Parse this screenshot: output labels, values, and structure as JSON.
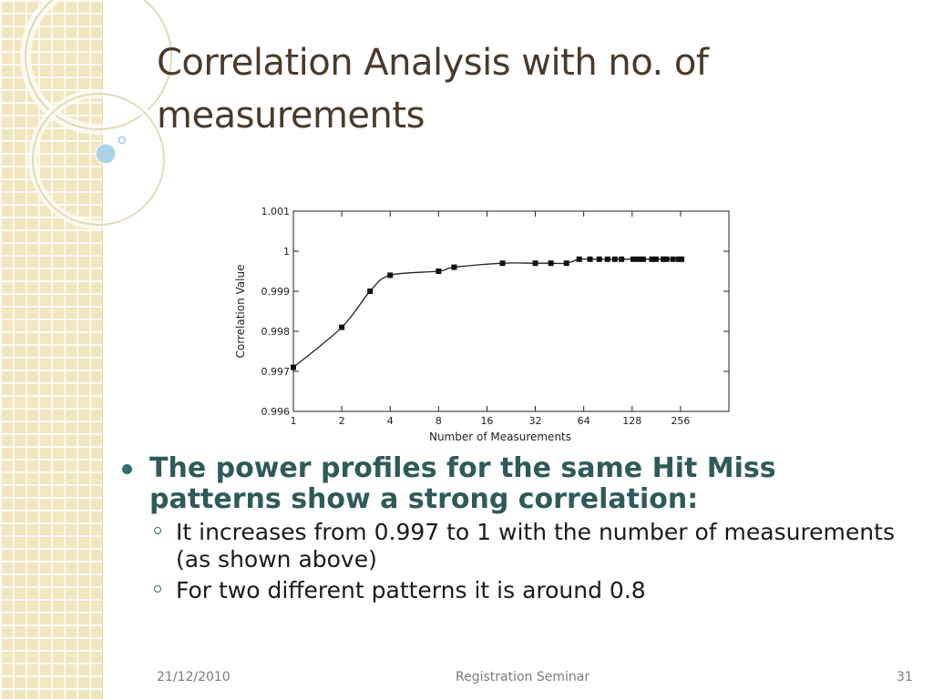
{
  "slide": {
    "title": "Correlation Analysis with no. of measurements",
    "bullet": "The power profiles for the same Hit Miss patterns show a strong correlation:",
    "subbullets": [
      "It increases from 0.997 to 1 with the number of measurements (as shown above)",
      "For two different patterns it is around 0.8"
    ],
    "footer": {
      "date": "21/12/2010",
      "center": "Registration Seminar",
      "page": "31"
    }
  },
  "chart_data": {
    "type": "line",
    "xlabel": "Number of Measurements",
    "ylabel": "Correlation Value",
    "xscale": "log2",
    "xlim": [
      1,
      512
    ],
    "ylim": [
      0.996,
      1.001
    ],
    "xticks": [
      "1",
      "2",
      "4",
      "8",
      "16",
      "32",
      "64",
      "128",
      "256"
    ],
    "xtick_values": [
      1,
      2,
      4,
      8,
      16,
      32,
      64,
      128,
      256
    ],
    "yticks": [
      "0.996",
      "0.997",
      "0.998",
      "0.999",
      "1",
      "1.001"
    ],
    "ytick_values": [
      0.996,
      0.997,
      0.998,
      0.999,
      1.0,
      1.001
    ],
    "grid": false,
    "series": [
      {
        "x": [
          1,
          2,
          3,
          4,
          8,
          10,
          20,
          32,
          40,
          50,
          60,
          70,
          80,
          90,
          100,
          110,
          130,
          140,
          150,
          170,
          180,
          200,
          210,
          230,
          250,
          260
        ],
        "y": [
          0.9971,
          0.9981,
          0.999,
          0.9994,
          0.9995,
          0.9996,
          0.9997,
          0.9997,
          0.9997,
          0.9997,
          0.9998,
          0.9998,
          0.9998,
          0.9998,
          0.9998,
          0.9998,
          0.9998,
          0.9998,
          0.9998,
          0.9998,
          0.9998,
          0.9998,
          0.9998,
          0.9998,
          0.9998,
          0.9998
        ]
      }
    ]
  }
}
